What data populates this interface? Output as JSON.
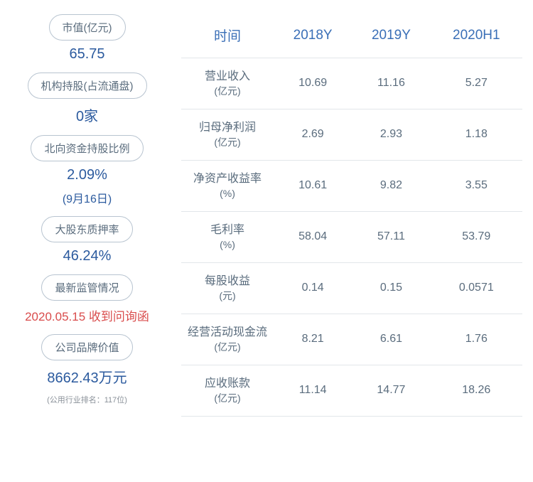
{
  "left_panel": {
    "items": [
      {
        "label": "市值(亿元)",
        "value": "65.75",
        "sub": null,
        "note": null,
        "red": false
      },
      {
        "label": "机构持股(占流通盘)",
        "value": "0家",
        "sub": null,
        "note": null,
        "red": false
      },
      {
        "label": "北向资金持股比例",
        "value": "2.09%",
        "sub": "(9月16日)",
        "note": null,
        "red": false
      },
      {
        "label": "大股东质押率",
        "value": "46.24%",
        "sub": null,
        "note": null,
        "red": false
      },
      {
        "label": "最新监管情况",
        "value": "2020.05.15 收到问询函",
        "sub": null,
        "note": null,
        "red": true
      },
      {
        "label": "公司品牌价值",
        "value": "8662.43万元",
        "sub": null,
        "note": "(公用行业排名：117位)",
        "red": false
      }
    ]
  },
  "table": {
    "headers": [
      "时间",
      "2018Y",
      "2019Y",
      "2020H1"
    ],
    "rows": [
      {
        "name": "营业收入",
        "unit": "(亿元)",
        "values": [
          "10.69",
          "11.16",
          "5.27"
        ]
      },
      {
        "name": "归母净利润",
        "unit": "(亿元)",
        "values": [
          "2.69",
          "2.93",
          "1.18"
        ]
      },
      {
        "name": "净资产收益率",
        "unit": "(%)",
        "values": [
          "10.61",
          "9.82",
          "3.55"
        ]
      },
      {
        "name": "毛利率",
        "unit": "(%)",
        "values": [
          "58.04",
          "57.11",
          "53.79"
        ]
      },
      {
        "name": "每股收益",
        "unit": "(元)",
        "values": [
          "0.14",
          "0.15",
          "0.0571"
        ]
      },
      {
        "name": "经营活动现金流",
        "unit": "(亿元)",
        "values": [
          "8.21",
          "6.61",
          "1.76"
        ]
      },
      {
        "name": "应收账款",
        "unit": "(亿元)",
        "values": [
          "11.14",
          "14.77",
          "18.26"
        ]
      }
    ]
  },
  "colors": {
    "pill_border": "#b8c4d0",
    "pill_text": "#5a6c7d",
    "value_blue": "#2b5a9e",
    "value_red": "#d94c4c",
    "header_blue": "#3a6fb7",
    "cell_text": "#5a6c7d",
    "divider": "#e2e6ea",
    "note_gray": "#8a9199"
  }
}
